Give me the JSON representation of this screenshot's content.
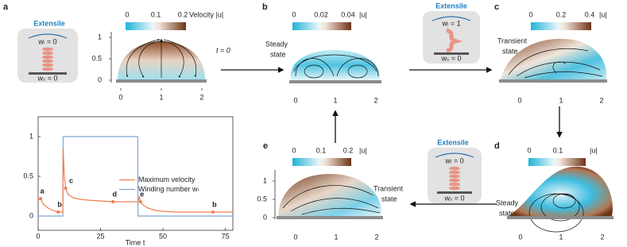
{
  "panels": {
    "a": {
      "letter": "a",
      "colorbar_ticks": [
        0,
        0.1,
        0.2
      ],
      "colorbar_label": "Velocity |u|",
      "x_ticks": [
        0,
        1,
        2
      ],
      "y_ticks": [
        0,
        0.5,
        1
      ],
      "note": "t = 0"
    },
    "b": {
      "letter": "b",
      "colorbar_ticks": [
        0,
        0.02,
        0.04
      ],
      "colorbar_label": "|u|",
      "state": [
        "Steady",
        "state"
      ],
      "x_ticks": [
        0,
        1,
        2
      ]
    },
    "c": {
      "letter": "c",
      "colorbar_ticks": [
        0,
        0.2,
        0.4
      ],
      "colorbar_label": "|u|",
      "state": [
        "Transient",
        "state"
      ],
      "x_ticks": [
        0,
        1,
        2
      ]
    },
    "d": {
      "letter": "d",
      "colorbar_ticks": [
        0,
        0.1
      ],
      "colorbar_label": "|u|",
      "state": [
        "Steady",
        "state"
      ],
      "x_ticks": [
        0,
        1,
        2
      ]
    },
    "e": {
      "letter": "e",
      "colorbar_ticks": [
        0,
        0.1,
        0.2
      ],
      "colorbar_label": "|u|",
      "state": [
        "Transient",
        "state"
      ],
      "x_ticks": [
        0,
        1,
        2
      ],
      "y_ticks": [
        0,
        0.5,
        1
      ]
    }
  },
  "insets": [
    {
      "title": "Extensile",
      "top": "wₗ = 0",
      "bottom": "wₛ = 0"
    },
    {
      "title": "Extensile",
      "top": "wₗ = 1",
      "bottom": "wₛ = 0"
    },
    {
      "title": "Extensile",
      "top": "wₗ = 0",
      "bottom": "wₛ = 0"
    }
  ],
  "chart_data": {
    "type": "line",
    "x_label": "Time t",
    "x": [
      0,
      1,
      2,
      4,
      6,
      8,
      9.9,
      10,
      10.5,
      11,
      12,
      14,
      17,
      20,
      25,
      30,
      35,
      39.9,
      40,
      40.5,
      41,
      42,
      44,
      47,
      50,
      55,
      60,
      65,
      70,
      75,
      78
    ],
    "series": [
      {
        "name": "Maximum velocity",
        "color": "#f07f4f",
        "values": [
          0.2,
          0.22,
          0.15,
          0.1,
          0.07,
          0.05,
          0.05,
          0.85,
          0.5,
          0.35,
          0.27,
          0.23,
          0.21,
          0.2,
          0.19,
          0.18,
          0.18,
          0.18,
          0.18,
          0.25,
          0.18,
          0.14,
          0.1,
          0.07,
          0.06,
          0.05,
          0.05,
          0.05,
          0.05,
          0.05,
          0.05
        ]
      },
      {
        "name": "Winding number wₗ",
        "color": "#7fa6d6",
        "values": [
          0,
          0,
          0,
          0,
          0,
          0,
          0,
          1,
          1,
          1,
          1,
          1,
          1,
          1,
          1,
          1,
          1,
          1,
          0,
          0,
          0,
          0,
          0,
          0,
          0,
          0,
          0,
          0,
          0,
          0,
          0
        ]
      }
    ],
    "annotations": [
      {
        "text": "a",
        "x": 1,
        "y": 0.22
      },
      {
        "text": "b",
        "x": 8,
        "y": 0.05
      },
      {
        "text": "c",
        "x": 11,
        "y": 0.35
      },
      {
        "text": "d",
        "x": 30,
        "y": 0.18
      },
      {
        "text": "e",
        "x": 41,
        "y": 0.18
      },
      {
        "text": "b",
        "x": 70,
        "y": 0.05
      }
    ],
    "xlim": [
      0,
      78
    ],
    "ylim": [
      -0.18,
      1.25
    ],
    "xticks": [
      0,
      25,
      50,
      75
    ],
    "yticks": [
      0,
      0.5,
      1
    ],
    "legend": "right"
  }
}
